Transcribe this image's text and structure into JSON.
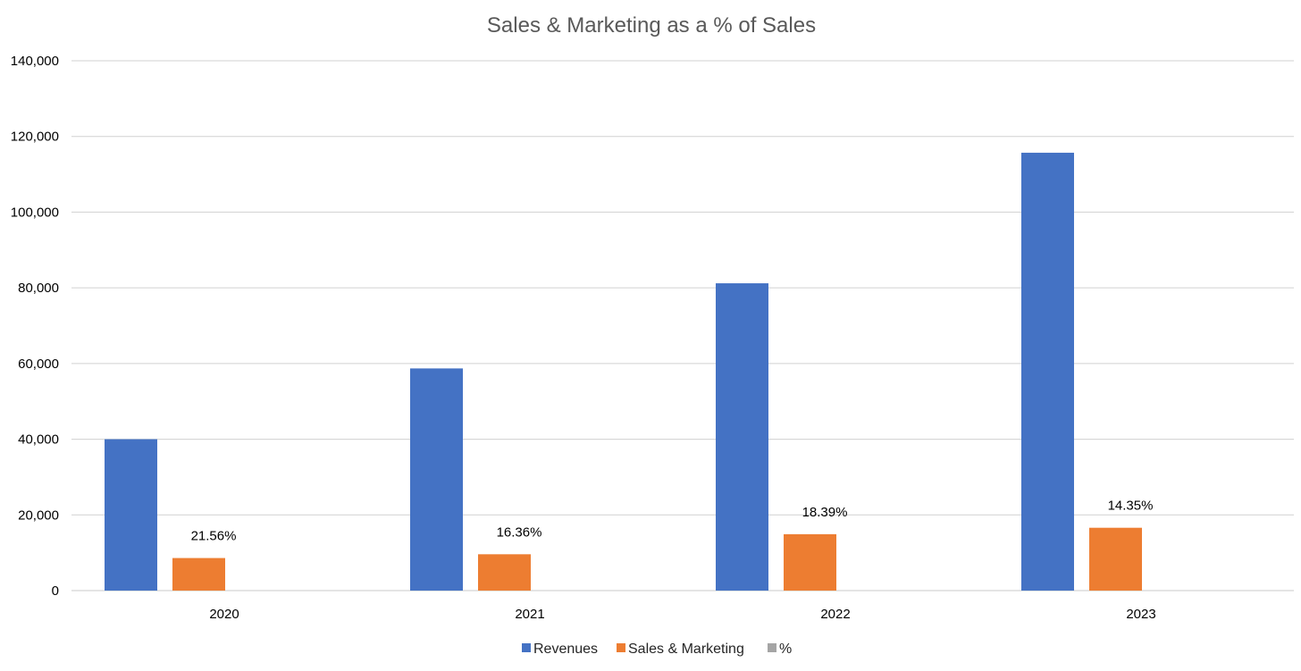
{
  "chart_data": {
    "type": "bar",
    "title": "Sales & Marketing as a % of Sales",
    "categories": [
      "2020",
      "2021",
      "2022",
      "2023"
    ],
    "series": [
      {
        "name": "Revenues",
        "values": [
          40000,
          58700,
          81200,
          115700
        ],
        "color": "#4472C4"
      },
      {
        "name": "Sales & Marketing",
        "values": [
          8600,
          9600,
          14900,
          16600
        ],
        "color": "#ED7D31"
      },
      {
        "name": "%",
        "values": [
          21.56,
          16.36,
          18.39,
          14.35
        ],
        "labels": [
          "21.56%",
          "16.36%",
          "18.39%",
          "14.35%"
        ],
        "color": "#A5A5A5"
      }
    ],
    "ylim": [
      0,
      140000
    ],
    "yticks": [
      "0",
      "20,000",
      "40,000",
      "60,000",
      "80,000",
      "100,000",
      "120,000",
      "140,000"
    ],
    "grid": true,
    "legend": "bottom"
  }
}
